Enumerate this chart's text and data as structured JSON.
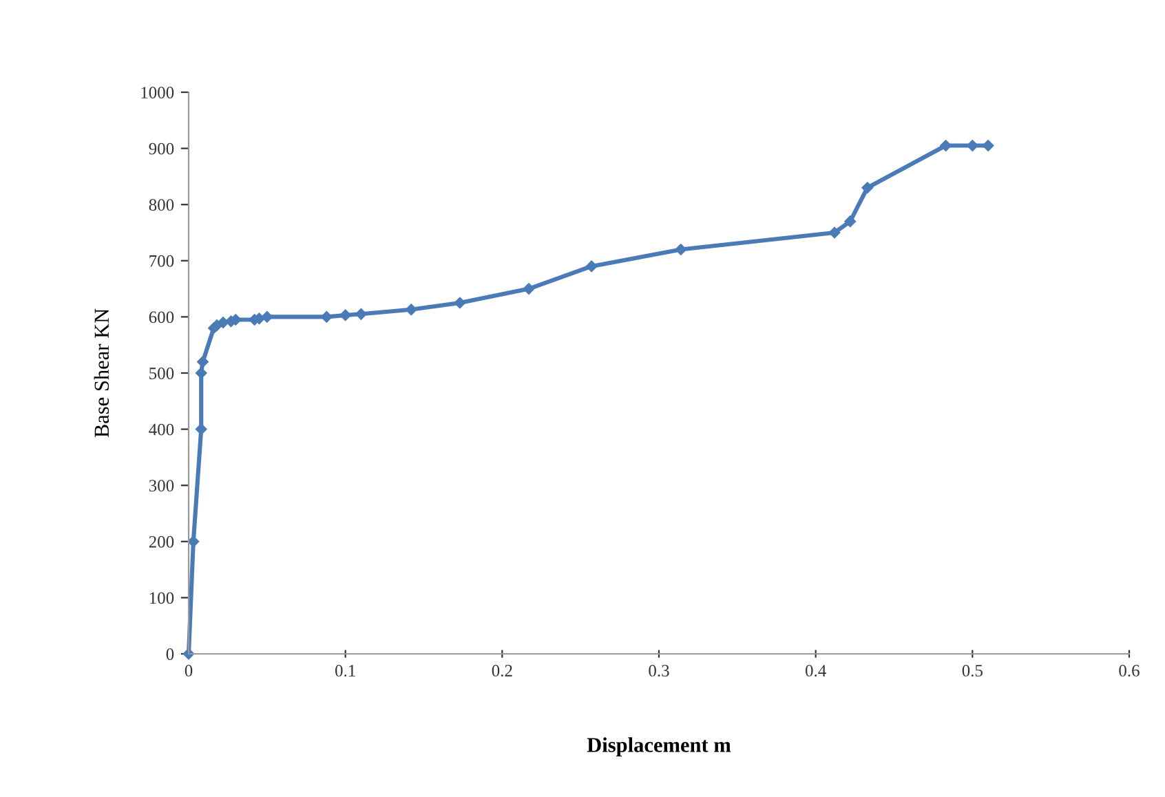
{
  "chart_data": {
    "type": "line",
    "xlabel": "Displacement m",
    "ylabel": "Base Shear KN",
    "series": [
      {
        "color": "#4a7bb7",
        "x": [
          0,
          0.003,
          0.008,
          0.008,
          0.009,
          0.016,
          0.018,
          0.022,
          0.027,
          0.03,
          0.042,
          0.045,
          0.05,
          0.088,
          0.1,
          0.11,
          0.142,
          0.173,
          0.217,
          0.257,
          0.314,
          0.412,
          0.422,
          0.433,
          0.483,
          0.5,
          0.51
        ],
        "values": [
          0,
          200,
          400,
          500,
          520,
          580,
          585,
          590,
          592,
          595,
          595,
          597,
          600,
          600,
          603,
          605,
          613,
          625,
          650,
          690,
          720,
          750,
          770,
          830,
          905,
          905,
          905
        ]
      }
    ],
    "xlim": [
      0,
      0.6
    ],
    "xticks": [
      0,
      0.1,
      0.2,
      0.3,
      0.4,
      0.5,
      0.6
    ],
    "ylim": [
      0,
      1000
    ],
    "yticks": [
      0,
      100,
      200,
      300,
      400,
      500,
      600,
      700,
      800,
      900,
      1000
    ],
    "grid": false,
    "legend": false,
    "marker": "diamond",
    "line_style": "solid"
  }
}
